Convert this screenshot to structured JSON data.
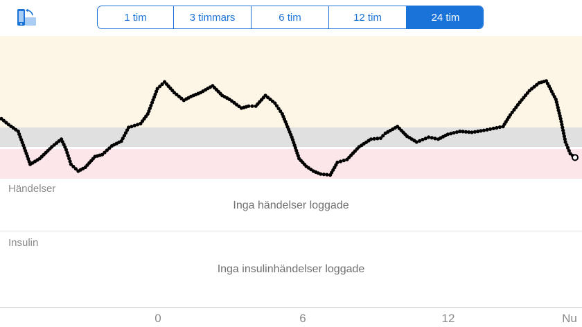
{
  "toolbar": {
    "rotate_icon": "phone-rotate-icon",
    "ranges": [
      "1 tim",
      "3 timmars",
      "6 tim",
      "12 tim",
      "24 tim"
    ],
    "selected_index": 4
  },
  "colors": {
    "accent": "#1a73d9",
    "high_zone": "#fdf6e6",
    "target_zone": "#e0e0e0",
    "low_zone": "#fde6e9",
    "trace": "#000000"
  },
  "events": {
    "label": "Händelser",
    "empty": "Inga händelser loggade"
  },
  "insulin": {
    "label": "Insulin",
    "empty": "Inga insulinhändelser loggade"
  },
  "timeline": {
    "ticks": [
      "0",
      "6",
      "12",
      "Nu"
    ]
  },
  "chart_data": {
    "type": "scatter",
    "xlabel": "",
    "ylabel": "",
    "x_unit": "hours",
    "xlim": [
      -6.5,
      17.4
    ],
    "ylim": [
      0,
      100
    ],
    "target_range": [
      30,
      50
    ],
    "low_threshold": 30,
    "x_ticks": [
      {
        "x": 0,
        "label": "0"
      },
      {
        "x": 6,
        "label": "6"
      },
      {
        "x": 12,
        "label": "12"
      },
      {
        "x": 17.4,
        "label": "Nu"
      }
    ],
    "series": [
      {
        "points": [
          [
            -6.5,
            59
          ],
          [
            -6.2,
            53
          ],
          [
            -5.8,
            46
          ],
          [
            -5.5,
            26
          ],
          [
            -5.3,
            12
          ],
          [
            -4.9,
            18
          ],
          [
            -4.4,
            30
          ],
          [
            -4.0,
            38
          ],
          [
            -3.8,
            27
          ],
          [
            -3.6,
            12
          ],
          [
            -3.3,
            5
          ],
          [
            -3.0,
            9
          ],
          [
            -2.6,
            20
          ],
          [
            -2.3,
            22
          ],
          [
            -1.9,
            31
          ],
          [
            -1.5,
            36
          ],
          [
            -1.2,
            50
          ],
          [
            -0.7,
            54
          ],
          [
            -0.4,
            64
          ],
          [
            0.0,
            90
          ],
          [
            0.3,
            97
          ],
          [
            0.7,
            86
          ],
          [
            1.1,
            78
          ],
          [
            1.4,
            82
          ],
          [
            1.8,
            86
          ],
          [
            2.3,
            93
          ],
          [
            2.7,
            83
          ],
          [
            3.0,
            79
          ],
          [
            3.5,
            70
          ],
          [
            3.8,
            72
          ],
          [
            4.1,
            72
          ],
          [
            4.5,
            83
          ],
          [
            4.9,
            75
          ],
          [
            5.2,
            64
          ],
          [
            5.6,
            40
          ],
          [
            5.9,
            18
          ],
          [
            6.2,
            10
          ],
          [
            6.5,
            5
          ],
          [
            6.8,
            2
          ],
          [
            7.2,
            1
          ],
          [
            7.5,
            14
          ],
          [
            7.9,
            17
          ],
          [
            8.4,
            30
          ],
          [
            8.9,
            38
          ],
          [
            9.3,
            39
          ],
          [
            9.5,
            44
          ],
          [
            10.0,
            51
          ],
          [
            10.4,
            41
          ],
          [
            10.8,
            35
          ],
          [
            11.3,
            40
          ],
          [
            11.7,
            38
          ],
          [
            12.1,
            43
          ],
          [
            12.6,
            46
          ],
          [
            13.1,
            45
          ],
          [
            13.6,
            47
          ],
          [
            14.0,
            49
          ],
          [
            14.4,
            51
          ],
          [
            14.7,
            63
          ],
          [
            15.1,
            76
          ],
          [
            15.5,
            88
          ],
          [
            15.9,
            96
          ],
          [
            16.2,
            98
          ],
          [
            16.6,
            79
          ],
          [
            16.8,
            59
          ],
          [
            17.0,
            35
          ],
          [
            17.2,
            23
          ],
          [
            17.4,
            19
          ]
        ]
      }
    ],
    "current_value": [
      17.4,
      19
    ]
  }
}
